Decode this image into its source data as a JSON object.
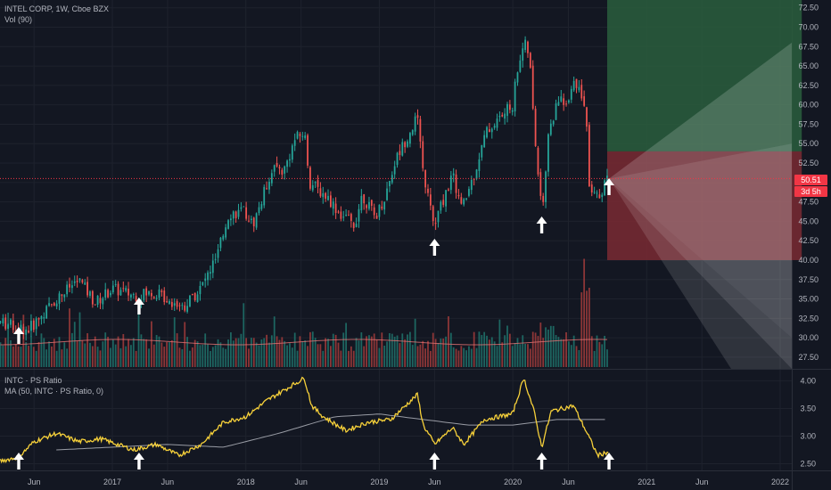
{
  "header": {
    "symbol_line": "INTEL CORP, 1W, Cboe BZX",
    "volume_line": "Vol (90)"
  },
  "indicator": {
    "title": "INTC · PS Ratio",
    "ma_line": "MA (50, INTC · PS Ratio, 0)"
  },
  "price_tag": {
    "value": "50.51",
    "countdown": "3d 5h"
  },
  "colors": {
    "background": "#131722",
    "grid": "#1e222d",
    "up": "#26a69a",
    "down": "#ef5350",
    "ps_ratio": "#f7d13a",
    "ma": "#d1d4dc",
    "profit_zone": "#2a5e3d",
    "loss_zone": "#7a2a33"
  },
  "icons": {
    "marker": "up-arrow-icon"
  },
  "chart_data": [
    {
      "type": "candlestick",
      "title": "INTEL CORP, 1W, Cboe BZX",
      "x_axis": {
        "ticks": [
          "Jun",
          "2017",
          "Jun",
          "2018",
          "Jun",
          "2019",
          "Jun",
          "2020",
          "Jun",
          "2021",
          "Jun",
          "2022"
        ]
      },
      "y_axis": {
        "ticks": [
          "27.50",
          "30.00",
          "32.50",
          "35.00",
          "37.50",
          "40.00",
          "42.50",
          "45.00",
          "47.50",
          "50.00",
          "52.50",
          "55.00",
          "57.50",
          "60.00",
          "62.50",
          "65.00",
          "67.50",
          "70.00",
          "72.50"
        ],
        "range": [
          26,
          73.5
        ]
      },
      "anchors": [
        [
          "2016-03-01",
          32.0
        ],
        [
          "2016-05-15",
          31.0
        ],
        [
          "2016-06-15",
          32.5
        ],
        [
          "2016-08-01",
          35.0
        ],
        [
          "2016-10-01",
          37.5
        ],
        [
          "2016-11-15",
          34.5
        ],
        [
          "2016-12-31",
          36.3
        ],
        [
          "2017-03-01",
          35.5
        ],
        [
          "2017-05-01",
          35.8
        ],
        [
          "2017-06-01",
          35.0
        ],
        [
          "2017-07-15",
          34.0
        ],
        [
          "2017-09-01",
          36.5
        ],
        [
          "2017-10-15",
          40.5
        ],
        [
          "2017-11-15",
          46.0
        ],
        [
          "2017-12-31",
          46.2
        ],
        [
          "2018-01-20",
          44.5
        ],
        [
          "2018-02-15",
          48.0
        ],
        [
          "2018-03-15",
          52.0
        ],
        [
          "2018-04-15",
          51.5
        ],
        [
          "2018-05-15",
          55.5
        ],
        [
          "2018-06-10",
          56.5
        ],
        [
          "2018-06-25",
          50.0
        ],
        [
          "2018-08-15",
          48.0
        ],
        [
          "2018-09-15",
          46.0
        ],
        [
          "2018-10-25",
          44.5
        ],
        [
          "2018-11-15",
          48.5
        ],
        [
          "2018-12-20",
          45.5
        ],
        [
          "2019-01-15",
          48.0
        ],
        [
          "2019-02-15",
          53.0
        ],
        [
          "2019-04-15",
          58.5
        ],
        [
          "2019-04-28",
          52.0
        ],
        [
          "2019-05-31",
          44.2
        ],
        [
          "2019-06-15",
          46.5
        ],
        [
          "2019-07-20",
          51.0
        ],
        [
          "2019-08-15",
          46.5
        ],
        [
          "2019-09-20",
          51.5
        ],
        [
          "2019-10-20",
          56.5
        ],
        [
          "2019-11-20",
          58.0
        ],
        [
          "2019-12-31",
          60.0
        ],
        [
          "2020-01-15",
          65.0
        ],
        [
          "2020-01-31",
          68.0
        ],
        [
          "2020-02-15",
          66.5
        ],
        [
          "2020-02-28",
          57.0
        ],
        [
          "2020-03-20",
          46.0
        ],
        [
          "2020-04-10",
          57.0
        ],
        [
          "2020-05-10",
          61.0
        ],
        [
          "2020-05-31",
          60.0
        ],
        [
          "2020-06-15",
          64.0
        ],
        [
          "2020-07-20",
          59.0
        ],
        [
          "2020-07-26",
          49.0
        ],
        [
          "2020-08-20",
          48.0
        ],
        [
          "2020-09-15",
          50.5
        ]
      ],
      "price_line": 50.51,
      "markers": [
        "2016-04-20",
        "2017-03-15",
        "2019-06-01",
        "2020-03-20",
        "2020-09-20"
      ],
      "long_position": {
        "start": "2020-09-15",
        "end": "2022-03-01",
        "entry": 54.0,
        "target": 75.0,
        "stop": 40.0
      }
    },
    {
      "type": "bar",
      "title": "Vol (90)",
      "average_line": "Vol (90)"
    },
    {
      "type": "line",
      "title": "INTC · PS Ratio",
      "y_axis": {
        "ticks": [
          "2.50",
          "3.00",
          "3.50",
          "4.00"
        ],
        "range": [
          2.38,
          4.2
        ]
      },
      "series": [
        {
          "name": "INTC · PS Ratio",
          "anchors": [
            [
              "2016-03-01",
              2.55
            ],
            [
              "2016-04-20",
              2.62
            ],
            [
              "2016-06-01",
              2.9
            ],
            [
              "2016-08-01",
              3.05
            ],
            [
              "2016-10-01",
              2.9
            ],
            [
              "2016-12-01",
              2.95
            ],
            [
              "2017-03-01",
              2.75
            ],
            [
              "2017-05-01",
              2.85
            ],
            [
              "2017-07-01",
              2.65
            ],
            [
              "2017-09-01",
              2.85
            ],
            [
              "2017-11-01",
              3.25
            ],
            [
              "2018-01-01",
              3.35
            ],
            [
              "2018-03-01",
              3.65
            ],
            [
              "2018-06-10",
              4.05
            ],
            [
              "2018-06-30",
              3.55
            ],
            [
              "2018-08-01",
              3.35
            ],
            [
              "2018-10-01",
              3.1
            ],
            [
              "2018-12-01",
              3.25
            ],
            [
              "2019-02-01",
              3.3
            ],
            [
              "2019-04-15",
              3.75
            ],
            [
              "2019-05-01",
              3.2
            ],
            [
              "2019-06-01",
              2.85
            ],
            [
              "2019-07-20",
              3.15
            ],
            [
              "2019-08-20",
              2.85
            ],
            [
              "2019-10-15",
              3.3
            ],
            [
              "2019-12-31",
              3.4
            ],
            [
              "2020-01-31",
              4.05
            ],
            [
              "2020-02-28",
              3.45
            ],
            [
              "2020-03-20",
              2.8
            ],
            [
              "2020-04-15",
              3.45
            ],
            [
              "2020-06-15",
              3.55
            ],
            [
              "2020-07-26",
              3.0
            ],
            [
              "2020-08-20",
              2.65
            ],
            [
              "2020-09-20",
              2.72
            ]
          ]
        },
        {
          "name": "MA (50, INTC · PS Ratio, 0)",
          "anchors": [
            [
              "2016-08-01",
              2.75
            ],
            [
              "2017-01-01",
              2.8
            ],
            [
              "2017-06-01",
              2.85
            ],
            [
              "2017-11-01",
              2.8
            ],
            [
              "2018-04-01",
              3.05
            ],
            [
              "2018-09-01",
              3.35
            ],
            [
              "2019-01-01",
              3.4
            ],
            [
              "2019-05-01",
              3.3
            ],
            [
              "2019-09-01",
              3.2
            ],
            [
              "2020-01-01",
              3.2
            ],
            [
              "2020-05-01",
              3.3
            ],
            [
              "2020-09-20",
              3.3
            ]
          ]
        }
      ]
    }
  ]
}
